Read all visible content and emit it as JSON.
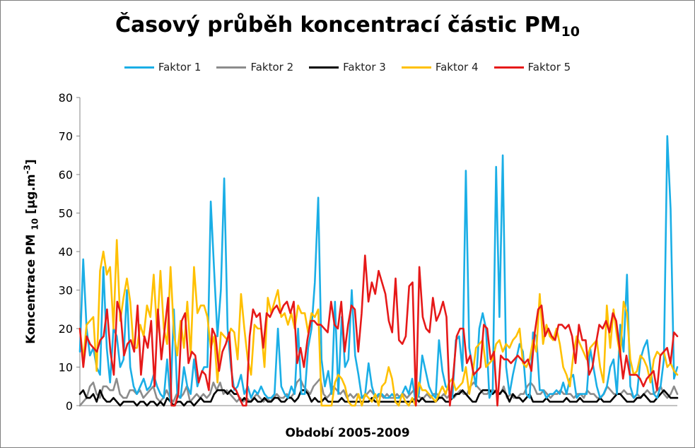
{
  "title_main": "Časový průběh koncentrací částic PM",
  "title_sub": "10",
  "ylabel_main": "Koncentrace PM ",
  "ylabel_sub": "10",
  "ylabel_unit": " [µg.m",
  "ylabel_sup": "-3",
  "ylabel_end": "]",
  "xlabel": "Období 2005-2009",
  "colors": {
    "faktor1": "#1aaee6",
    "faktor2": "#8c8c8c",
    "faktor3": "#000000",
    "faktor4": "#ffc000",
    "faktor5": "#e61919"
  },
  "chart_data": {
    "type": "line",
    "ylim": [
      0,
      80
    ],
    "yticks": [
      "0",
      "10",
      "20",
      "30",
      "40",
      "50",
      "60",
      "70",
      "80"
    ],
    "grid": false,
    "legend_position": "top",
    "series": [
      {
        "name": "Faktor 1",
        "color": "#1aaee6",
        "values": [
          14,
          38,
          20,
          13,
          15,
          10,
          8,
          36,
          15,
          6,
          20,
          18,
          10,
          12,
          30,
          10,
          5,
          3,
          5,
          7,
          4,
          5,
          8,
          5,
          3,
          2,
          12,
          1,
          25,
          3,
          2,
          10,
          5,
          3,
          12,
          5,
          8,
          10,
          10,
          53,
          35,
          18,
          30,
          59,
          20,
          10,
          4,
          5,
          8,
          3,
          5,
          2,
          4,
          3,
          5,
          3,
          2,
          2,
          3,
          20,
          5,
          3,
          2,
          5,
          3,
          20,
          3,
          3,
          15,
          20,
          32,
          54,
          12,
          5,
          9,
          3,
          27,
          3,
          23,
          10,
          12,
          30,
          13,
          8,
          2,
          3,
          11,
          5,
          2,
          3,
          3,
          2,
          2,
          3,
          2,
          2,
          3,
          5,
          3,
          7,
          1,
          3,
          13,
          9,
          5,
          3,
          2,
          17,
          9,
          5,
          4,
          2,
          17,
          18,
          9,
          61,
          15,
          10,
          5,
          20,
          24,
          20,
          2,
          4,
          62,
          23,
          65,
          10,
          3,
          8,
          12,
          16,
          14,
          3,
          2,
          19,
          18,
          4,
          4,
          2,
          3,
          3,
          4,
          3,
          6,
          3,
          7,
          8,
          2,
          3,
          3,
          3,
          15,
          10,
          5,
          2,
          3,
          5,
          10,
          12,
          3,
          21,
          14,
          34,
          5,
          2,
          3,
          12,
          15,
          17,
          10,
          3,
          2,
          5,
          12,
          70,
          51,
          7,
          10
        ]
      },
      {
        "name": "Faktor 2",
        "color": "#8c8c8c",
        "values": [
          0,
          1,
          2,
          5,
          6,
          3,
          2,
          5,
          5,
          4,
          4,
          7,
          3,
          2,
          2,
          4,
          4,
          3,
          4,
          2,
          3,
          4,
          5,
          2,
          1,
          2,
          4,
          2,
          1,
          3,
          2,
          3,
          5,
          1,
          2,
          3,
          2,
          3,
          2,
          3,
          6,
          4,
          6,
          3,
          4,
          3,
          2,
          1,
          2,
          1,
          2,
          1,
          2,
          3,
          2,
          1,
          2,
          1,
          2,
          3,
          2,
          2,
          3,
          2,
          3,
          6,
          7,
          5,
          4,
          3,
          5,
          6,
          7,
          3,
          2,
          3,
          5,
          4,
          3,
          4,
          2,
          3,
          2,
          3,
          2,
          2,
          3,
          4,
          3,
          2,
          3,
          2,
          3,
          2,
          2,
          3,
          2,
          3,
          2,
          3,
          4,
          3,
          2,
          2,
          3,
          2,
          3,
          3,
          2,
          3,
          2,
          3,
          2,
          3,
          4,
          3,
          3,
          5,
          6,
          5,
          4,
          3,
          3,
          4,
          4,
          3,
          3,
          5,
          2,
          3,
          2,
          2,
          3,
          3,
          5,
          6,
          5,
          3,
          3,
          4,
          3,
          2,
          3,
          3,
          4,
          3,
          3,
          3,
          2,
          3,
          3,
          2,
          4,
          3,
          3,
          2,
          2,
          3,
          5,
          4,
          3,
          3,
          3,
          4,
          3,
          3,
          2,
          3,
          2,
          3,
          4,
          3,
          3,
          4,
          5,
          3,
          2,
          3,
          5,
          3
        ]
      },
      {
        "name": "Faktor 3",
        "color": "#000000",
        "values": [
          3,
          4,
          2,
          2,
          3,
          1,
          4,
          2,
          1,
          1,
          2,
          1,
          0,
          1,
          1,
          1,
          1,
          0,
          1,
          1,
          0,
          1,
          1,
          0,
          1,
          0,
          2,
          1,
          0,
          1,
          1,
          0,
          1,
          1,
          0,
          1,
          2,
          1,
          1,
          1,
          3,
          4,
          4,
          4,
          3,
          4,
          3,
          3,
          1,
          2,
          1,
          1,
          2,
          1,
          1,
          2,
          1,
          1,
          2,
          2,
          1,
          1,
          2,
          2,
          1,
          2,
          4,
          4,
          3,
          1,
          2,
          1,
          1,
          2,
          1,
          1,
          1,
          1,
          2,
          1,
          1,
          1,
          1,
          1,
          1,
          1,
          1,
          2,
          1,
          1,
          1,
          1,
          1,
          1,
          1,
          1,
          1,
          1,
          1,
          1,
          2,
          1,
          2,
          1,
          1,
          1,
          1,
          2,
          2,
          1,
          1,
          2,
          3,
          3,
          4,
          3,
          2,
          1,
          1,
          3,
          4,
          4,
          4,
          3,
          4,
          3,
          4,
          3,
          1,
          3,
          2,
          2,
          1,
          2,
          3,
          1,
          1,
          1,
          1,
          2,
          1,
          1,
          1,
          1,
          1,
          2,
          1,
          1,
          1,
          2,
          1,
          1,
          1,
          1,
          1,
          2,
          1,
          1,
          1,
          2,
          3,
          3,
          2,
          1,
          1,
          1,
          2,
          2,
          3,
          2,
          1,
          1,
          2,
          3,
          4,
          3,
          2,
          2,
          2
        ]
      },
      {
        "name": "Faktor 4",
        "color": "#ffc000",
        "values": [
          20,
          12,
          21,
          22,
          23,
          9,
          35,
          40,
          34,
          36,
          20,
          43,
          22,
          28,
          33,
          27,
          15,
          15,
          21,
          18,
          26,
          23,
          34,
          19,
          35,
          20,
          16,
          36,
          19,
          13,
          22,
          15,
          27,
          13,
          36,
          24,
          26,
          26,
          23,
          15,
          18,
          6,
          19,
          18,
          17,
          20,
          19,
          12,
          29,
          20,
          12,
          8,
          21,
          20,
          20,
          10,
          28,
          24,
          27,
          30,
          23,
          24,
          21,
          24,
          20,
          26,
          24,
          24,
          19,
          24,
          23,
          25,
          0,
          0,
          0,
          0,
          6,
          8,
          7,
          5,
          1,
          0,
          0,
          3,
          0,
          3,
          2,
          1,
          3,
          0,
          5,
          6,
          10,
          7,
          1,
          0,
          3,
          1,
          0,
          2,
          0,
          6,
          4,
          4,
          3,
          2,
          1,
          3,
          5,
          3,
          6,
          7,
          4,
          5,
          6,
          10,
          3,
          8,
          15,
          16,
          17,
          10,
          11,
          12,
          16,
          17,
          14,
          16,
          15,
          17,
          18,
          20,
          11,
          10,
          12,
          17,
          14,
          29,
          16,
          21,
          18,
          17,
          20,
          16,
          10,
          8,
          5,
          13,
          18,
          16,
          14,
          12,
          15,
          16,
          17,
          10,
          6,
          26,
          15,
          25,
          18,
          13,
          27,
          24,
          12,
          8,
          9,
          13,
          12,
          10,
          6,
          12,
          14,
          13,
          14,
          10,
          11,
          9,
          8
        ]
      },
      {
        "name": "Faktor 5",
        "color": "#e61919",
        "values": [
          20,
          10,
          18,
          16,
          15,
          14,
          17,
          18,
          25,
          14,
          8,
          27,
          24,
          13,
          16,
          17,
          14,
          26,
          8,
          18,
          15,
          22,
          5,
          25,
          12,
          20,
          28,
          0,
          0,
          3,
          22,
          24,
          11,
          14,
          13,
          6,
          9,
          8,
          4,
          20,
          18,
          9,
          14,
          16,
          19,
          5,
          4,
          2,
          0,
          0,
          18,
          25,
          23,
          24,
          15,
          24,
          23,
          25,
          26,
          24,
          26,
          27,
          24,
          27,
          11,
          15,
          10,
          17,
          22,
          22,
          21,
          21,
          20,
          19,
          27,
          21,
          20,
          27,
          14,
          21,
          26,
          25,
          14,
          24,
          39,
          27,
          32,
          29,
          35,
          32,
          29,
          22,
          19,
          33,
          17,
          16,
          18,
          31,
          32,
          0,
          36,
          23,
          20,
          19,
          28,
          22,
          24,
          27,
          23,
          0,
          8,
          18,
          20,
          20,
          11,
          13,
          8,
          9,
          10,
          21,
          20,
          12,
          14,
          0,
          13,
          12,
          12,
          11,
          12,
          13,
          12,
          11,
          12,
          9,
          19,
          25,
          26,
          18,
          20,
          18,
          17,
          21,
          21,
          20,
          21,
          18,
          11,
          21,
          17,
          17,
          8,
          10,
          16,
          21,
          20,
          22,
          19,
          24,
          22,
          15,
          7,
          13,
          8,
          8,
          8,
          7,
          5,
          7,
          8,
          9,
          4,
          13,
          14,
          15,
          11,
          19,
          18
        ]
      }
    ]
  }
}
